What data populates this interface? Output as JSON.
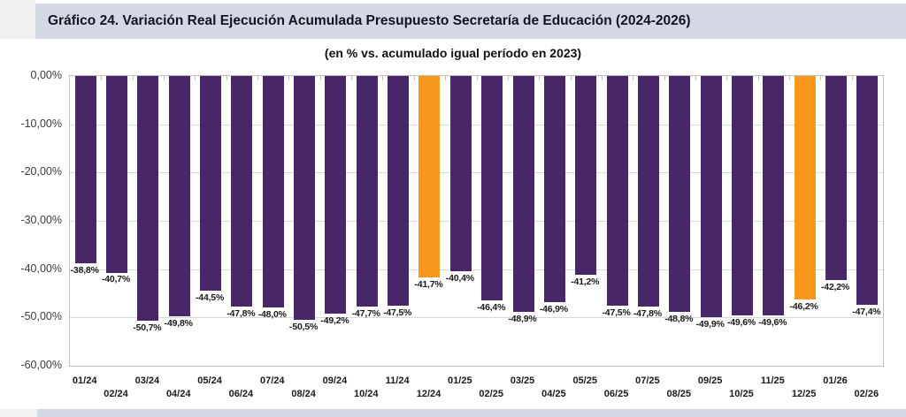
{
  "page": {
    "title": "Gráfico 24. Variación Real Ejecución Acumulada Presupuesto Secretaría de Educación (2024-2026)",
    "subtitle": "(en % vs. acumulado igual período en 2023)"
  },
  "chart_data": {
    "type": "bar",
    "title": "Gráfico 24. Variación Real Ejecución Acumulada Presupuesto Secretaría de Educación (2024-2026)",
    "subtitle": "(en % vs. acumulado igual período en 2023)",
    "categories": [
      "01/24",
      "02/24",
      "03/24",
      "04/24",
      "05/24",
      "06/24",
      "07/24",
      "08/24",
      "09/24",
      "10/24",
      "11/24",
      "12/24",
      "01/25",
      "02/25",
      "03/25",
      "04/25",
      "05/25",
      "06/25",
      "07/25",
      "08/25",
      "09/25",
      "10/25",
      "11/25",
      "12/25",
      "01/26",
      "02/26"
    ],
    "values": [
      -38.8,
      -40.7,
      -50.7,
      -49.8,
      -44.5,
      -47.8,
      -48.0,
      -50.5,
      -49.2,
      -47.7,
      -47.5,
      -41.7,
      -40.4,
      -46.4,
      -48.9,
      -46.9,
      -41.2,
      -47.5,
      -47.8,
      -48.8,
      -49.9,
      -49.6,
      -49.6,
      -46.2,
      -42.2,
      -47.4
    ],
    "value_labels": [
      "-38,8%",
      "-40,7%",
      "-50,7%",
      "-49,8%",
      "-44,5%",
      "-47,8%",
      "-48,0%",
      "-50,5%",
      "-49,2%",
      "-47,7%",
      "-47,5%",
      "-41,7%",
      "-40,4%",
      "-46,4%",
      "-48,9%",
      "-46,9%",
      "-41,2%",
      "-47,5%",
      "-47,8%",
      "-48,8%",
      "-49,9%",
      "-49,6%",
      "-49,6%",
      "-46,2%",
      "-42,2%",
      "-47,4%"
    ],
    "highlight_indices": [
      11,
      23
    ],
    "y_tick_labels": [
      "0,00%",
      "-10,00%",
      "-20,00%",
      "-30,00%",
      "-40,00%",
      "-50,00%",
      "-60,00%"
    ],
    "ylim": [
      -60,
      0
    ],
    "grid": true,
    "legend_position": "none",
    "colors": {
      "bar_default": "#472768",
      "bar_highlight": "#F8991D",
      "gridline": "#D9D9D9",
      "plot_border": "#BFBFBF",
      "title_band": "#D3D8E4",
      "page_margin": "#F1F0F0",
      "label_text": "#1A1A1A"
    }
  }
}
